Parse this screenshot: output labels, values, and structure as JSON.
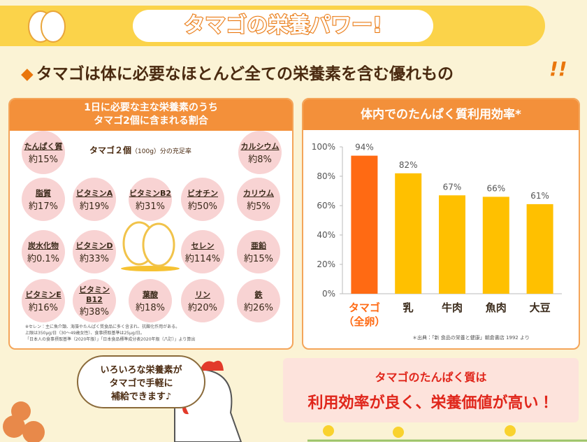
{
  "header": {
    "title": "タマゴの栄養パワー!",
    "subtitle": "タマゴは体に必要なほとんど全ての栄養素を含む優れもの",
    "exclaim": "!!"
  },
  "nutrients": {
    "heading": [
      "1日に必要な主な栄養素のうち",
      "タマゴ2個に含まれる割合"
    ],
    "caption": "タマゴ２個",
    "caption_unit": "（100g）",
    "caption_tail": "分の充足率",
    "items": [
      {
        "name": "たんぱく質",
        "value": "約15%"
      },
      {
        "name": "カルシウム",
        "value": "約8%"
      },
      {
        "name": "脂質",
        "value": "約17%"
      },
      {
        "name": "ビタミンA",
        "value": "約19%"
      },
      {
        "name": "ビタミンB2",
        "value": "約31%"
      },
      {
        "name": "ビオチン",
        "value": "約50%"
      },
      {
        "name": "カリウム",
        "value": "約5%"
      },
      {
        "name": "炭水化物",
        "value": "約0.1%"
      },
      {
        "name": "ビタミンD",
        "value": "約33%"
      },
      {
        "name": "セレン",
        "value": "約114%"
      },
      {
        "name": "亜鉛",
        "value": "約15%"
      },
      {
        "name": "ビタミンE",
        "value": "約16%"
      },
      {
        "name": "ビタミンB12",
        "value": "約38%"
      },
      {
        "name": "葉酸",
        "value": "約18%"
      },
      {
        "name": "リン",
        "value": "約20%"
      },
      {
        "name": "鉄",
        "value": "約26%"
      }
    ],
    "notes": [
      "※セレン：主に魚介類、海藻やたんぱく質食品に多く含まれ、抗酸化作用がある。",
      "上限は350μg/日（30～49歳女性）、食事摂取基準は25μg/日。",
      "「日本人の食事摂取基準（2020年版）」「日本食品標準成分表2020年版（八訂）」より算出"
    ]
  },
  "bubble": "いろいろな栄養素が\nタマゴで手軽に\n補給できます♪",
  "conclusion": {
    "line1": "タマゴのたんぱく質は",
    "line2": "利用効率が良く、栄養価値が高い！"
  },
  "chart_data": {
    "type": "bar",
    "title": "体内でのたんぱく質利用効率*",
    "categories": [
      "タマゴ\n（全卵）",
      "乳",
      "牛肉",
      "魚肉",
      "大豆"
    ],
    "values": [
      94,
      82,
      67,
      66,
      61
    ],
    "value_labels": [
      "94%",
      "82%",
      "67%",
      "66%",
      "61%"
    ],
    "colors": [
      "#ff6a13",
      "#ffc000",
      "#ffc000",
      "#ffc000",
      "#ffc000"
    ],
    "ylim": [
      0,
      100
    ],
    "yticks": [
      {
        "value": 0,
        "label": "0%"
      },
      {
        "value": 20,
        "label": "20%"
      },
      {
        "value": 40,
        "label": "40%"
      },
      {
        "value": 60,
        "label": "60%"
      },
      {
        "value": 80,
        "label": "80%"
      },
      {
        "value": 100,
        "label": "100%"
      }
    ],
    "source": "＊出典：「新 食品の栄養と健康」朝倉書店 1992 より"
  }
}
